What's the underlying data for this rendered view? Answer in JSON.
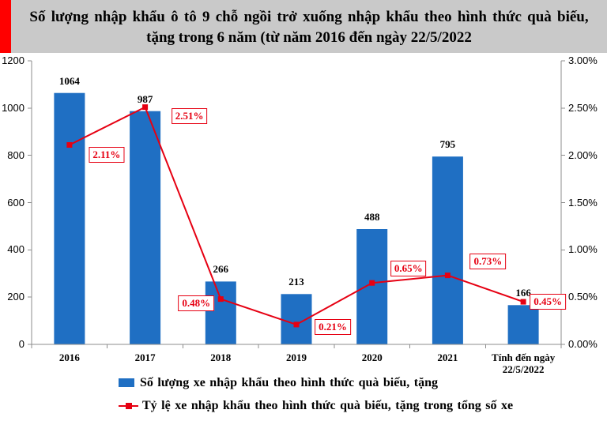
{
  "colors": {
    "title_background": "#c9c9c9",
    "title_stripe": "#ff0000",
    "bar": "#1f6fc3",
    "line": "#e60012",
    "axis": "#8c8c8c"
  },
  "chart_data": {
    "type": "bar",
    "title": [
      "Số lượng nhập khẩu ô tô 9 chỗ ngồi trở xuống nhập khẩu theo hình thức quà biếu,",
      "tặng trong 6 năm (từ năm 2016 đến ngày 22/5/2022"
    ],
    "categories": [
      "2016",
      "2017",
      "2018",
      "2019",
      "2020",
      "2021",
      "Tính đến ngày 22/5/2022"
    ],
    "series": [
      {
        "name": "Số lượng xe nhập khẩu theo hình thức quà biếu, tặng",
        "type": "bar",
        "axis": "left",
        "values": [
          1064,
          987,
          266,
          213,
          488,
          795,
          166
        ]
      },
      {
        "name": "Tỷ lệ xe nhập khẩu theo hình thức quà biếu, tặng trong tổng số xe",
        "type": "line",
        "axis": "right",
        "values": [
          2.11,
          2.51,
          0.48,
          0.21,
          0.65,
          0.73,
          0.45
        ],
        "labels": [
          "2.11%",
          "2.51%",
          "0.48%",
          "0.21%",
          "0.65%",
          "0.73%",
          "0.45%"
        ]
      }
    ],
    "ylim": [
      0,
      1200
    ],
    "yticks": [
      "0",
      "200",
      "400",
      "600",
      "800",
      "1000",
      "1200"
    ],
    "y2lim": [
      0,
      3
    ],
    "y2ticks": [
      "0.00%",
      "0.50%",
      "1.00%",
      "1.50%",
      "2.00%",
      "2.50%",
      "3.00%"
    ],
    "grid": false,
    "legend": "bottom"
  }
}
